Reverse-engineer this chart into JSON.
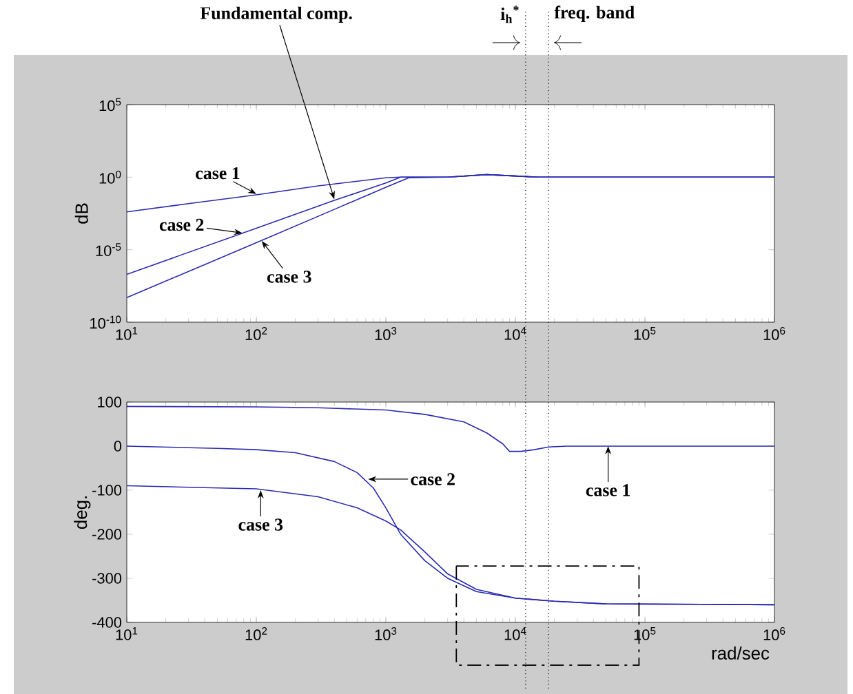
{
  "chart_data": [
    {
      "type": "line",
      "ylabel": "dB",
      "log": "xy",
      "color": "#2a2ab4",
      "xlim": [
        10,
        1000000
      ],
      "ylim": [
        1e-10,
        100000
      ],
      "xticks": [
        {
          "value": 10,
          "label": "10$^{1}$"
        },
        {
          "value": 100,
          "label": "10$^{2}$"
        },
        {
          "value": 1000,
          "label": "10$^{3}$"
        },
        {
          "value": 10000,
          "label": "10$^{4}$"
        },
        {
          "value": 100000,
          "label": "10$^{5}$"
        },
        {
          "value": 1000000,
          "label": "10$^{6}$"
        }
      ],
      "yticks": [
        {
          "value": 1e-10,
          "label": "10$^{-10}$"
        },
        {
          "value": 1e-05,
          "label": "10$^{-5}$"
        },
        {
          "value": 1,
          "label": "10$^{0}$"
        },
        {
          "value": 100000,
          "label": "10$^{5}$"
        }
      ],
      "series": [
        {
          "x": [
            10,
            30,
            100,
            300,
            1000,
            1300,
            3000,
            6000,
            10000,
            15000,
            1000000
          ],
          "values": [
            0.004,
            0.015,
            0.06,
            0.25,
            0.9,
            1,
            1,
            1.5,
            1.2,
            1,
            1
          ]
        },
        {
          "x": [
            10,
            100,
            400,
            1000,
            1300,
            3000,
            6000,
            10000,
            15000,
            1000000
          ],
          "values": [
            2e-07,
            0.0003,
            0.025,
            0.4,
            1,
            1,
            1.5,
            1.2,
            1,
            1
          ]
        },
        {
          "x": [
            10,
            100,
            400,
            1000,
            1500,
            3000,
            6000,
            10000,
            15000,
            1000000
          ],
          "values": [
            5e-09,
            3e-05,
            0.006,
            0.2,
            0.9,
            1,
            1.5,
            1.2,
            1,
            1
          ]
        }
      ],
      "ref_lines": [
        {
          "axis": "x",
          "value": 12000,
          "label": "i$_{h}$$^{*}$",
          "line_style": "dotted",
          "color": "#000000"
        },
        {
          "axis": "x",
          "value": 18000,
          "label": "freq. band",
          "line_style": "dotted",
          "color": "#000000"
        }
      ],
      "annotations": [
        {
          "text": "Fundamental comp.",
          "x": 400,
          "y": 0.03
        },
        {
          "text": "case 1",
          "x": 100,
          "y": 0.07
        },
        {
          "text": "case 2",
          "x": 78,
          "y": 0.00014
        },
        {
          "text": "case 3",
          "x": 110,
          "y": 4e-05
        }
      ]
    },
    {
      "type": "line",
      "ylabel": "deg.",
      "xlabel": "rad/sec",
      "log": "x",
      "color": "#2a2ab4",
      "xlim": [
        10,
        1000000
      ],
      "ylim": [
        -400,
        100
      ],
      "xticks": [
        {
          "value": 10,
          "label": "10$^{1}$"
        },
        {
          "value": 100,
          "label": "10$^{2}$"
        },
        {
          "value": 1000,
          "label": "10$^{3}$"
        },
        {
          "value": 10000,
          "label": "10$^{4}$"
        },
        {
          "value": 100000,
          "label": "10$^{5}$"
        },
        {
          "value": 1000000,
          "label": "10$^{6}$"
        }
      ],
      "yticks": [
        -400,
        -300,
        -200,
        -100,
        0,
        100
      ],
      "series": [
        {
          "x": [
            10,
            100,
            300,
            1000,
            2000,
            4000,
            6000,
            8000,
            9000,
            11000,
            14000,
            18000,
            25000,
            1000000
          ],
          "values": [
            90,
            89,
            87,
            82,
            72,
            55,
            30,
            5,
            -12,
            -12,
            -8,
            -2,
            0,
            0
          ]
        },
        {
          "x": [
            10,
            50,
            100,
            200,
            400,
            600,
            800,
            1000,
            1300,
            2000,
            3000,
            5000,
            10000,
            20000,
            50000,
            1000000
          ],
          "values": [
            0,
            -5,
            -8,
            -15,
            -35,
            -60,
            -95,
            -140,
            -200,
            -260,
            -300,
            -330,
            -345,
            -352,
            -358,
            -360
          ]
        },
        {
          "x": [
            10,
            100,
            300,
            600,
            1000,
            1300,
            2000,
            3000,
            5000,
            10000,
            20000,
            50000,
            1000000
          ],
          "values": [
            -90,
            -97,
            -115,
            -140,
            -170,
            -190,
            -240,
            -290,
            -325,
            -345,
            -352,
            -358,
            -360
          ]
        }
      ],
      "ref_lines": [
        {
          "axis": "x",
          "value": 12000,
          "line_style": "dotted",
          "color": "#000000"
        },
        {
          "axis": "x",
          "value": 18000,
          "line_style": "dotted",
          "color": "#000000"
        }
      ],
      "annotations": [
        {
          "text": "case 1",
          "x": 52000,
          "y": 0
        },
        {
          "text": "case 2",
          "x": 730,
          "y": -75
        },
        {
          "text": "case 3",
          "x": 108,
          "y": -100
        }
      ]
    }
  ]
}
